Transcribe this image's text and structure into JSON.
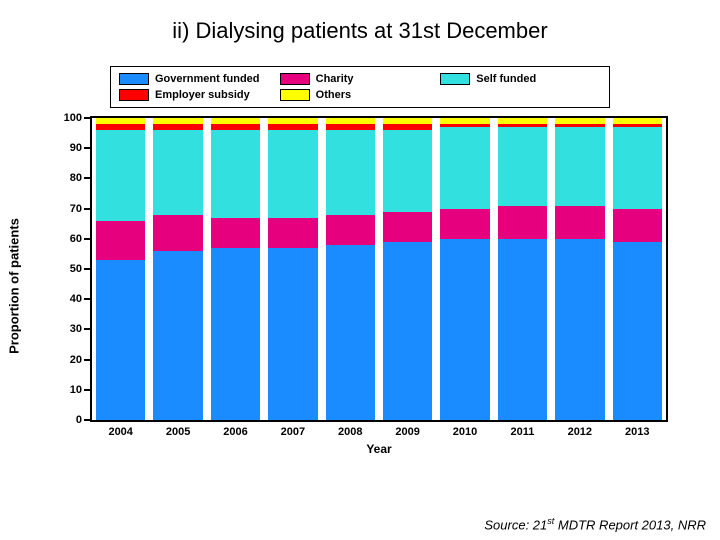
{
  "title": "ii) Dialysing patients at 31st December",
  "chart": {
    "type": "stacked-bar",
    "ylabel": "Proportion of patients",
    "xlabel": "Year",
    "ylim": [
      0,
      100
    ],
    "ytick_step": 10,
    "background_color": "#ffffff",
    "border_color": "#000000",
    "legend": [
      {
        "label": "Government funded",
        "color": "#1a8cff"
      },
      {
        "label": "Charity",
        "color": "#e6007e"
      },
      {
        "label": "Self funded",
        "color": "#33e0e0"
      },
      {
        "label": "Employer subsidy",
        "color": "#ff0000"
      },
      {
        "label": "Others",
        "color": "#ffff00"
      }
    ],
    "series_order": [
      "Government funded",
      "Charity",
      "Self funded",
      "Employer subsidy",
      "Others"
    ],
    "series_colors": {
      "Government funded": "#1a8cff",
      "Charity": "#e6007e",
      "Self funded": "#33e0e0",
      "Employer subsidy": "#ff0000",
      "Others": "#ffff00"
    },
    "categories": [
      "2004",
      "2005",
      "2006",
      "2007",
      "2008",
      "2009",
      "2010",
      "2011",
      "2012",
      "2013"
    ],
    "data": {
      "Government funded": [
        53,
        56,
        57,
        57,
        58,
        59,
        60,
        60,
        60,
        59
      ],
      "Charity": [
        13,
        12,
        10,
        10,
        10,
        10,
        10,
        11,
        11,
        11
      ],
      "Self funded": [
        30,
        28,
        29,
        29,
        28,
        27,
        27,
        26,
        26,
        27
      ],
      "Employer subsidy": [
        2,
        2,
        2,
        2,
        2,
        2,
        1,
        1,
        1,
        1
      ],
      "Others": [
        2,
        2,
        2,
        2,
        2,
        2,
        2,
        2,
        2,
        2
      ]
    },
    "title_fontsize": 22,
    "axis_fontsize": 13,
    "tick_fontsize": 11
  },
  "source_prefix": "Source: 21",
  "source_super": "st",
  "source_suffix": " MDTR Report 2013, NRR"
}
